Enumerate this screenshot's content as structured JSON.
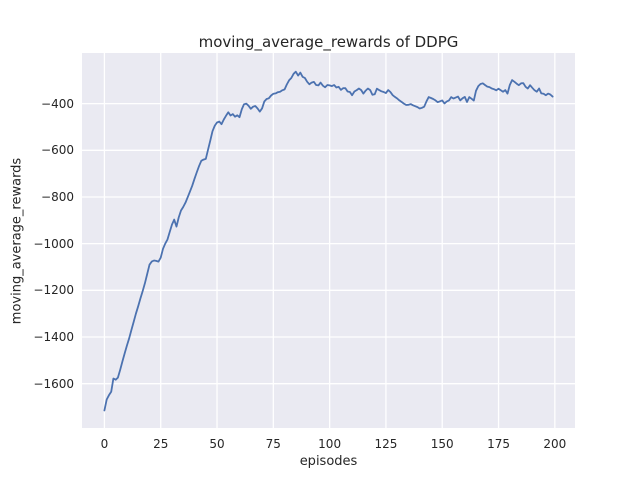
{
  "figure": {
    "background": "#ffffff"
  },
  "chart_data": {
    "type": "line",
    "title": "moving_average_rewards of DDPG",
    "xlabel": "episodes",
    "ylabel": "moving_average_rewards",
    "legend_position": "none",
    "grid": true,
    "style": "seaborn-darkgrid",
    "plot_bg": "#eaeaf2",
    "grid_color": "#ffffff",
    "text_color": "#262626",
    "xlim": [
      -9.95,
      208.95
    ],
    "ylim": [
      -1790,
      -183
    ],
    "x_ticks": [
      0,
      25,
      50,
      75,
      100,
      125,
      150,
      175,
      200
    ],
    "x_tick_labels": [
      "0",
      "25",
      "50",
      "75",
      "100",
      "125",
      "150",
      "175",
      "200"
    ],
    "y_ticks": [
      -400,
      -600,
      -800,
      -1000,
      -1200,
      -1400,
      -1600
    ],
    "y_tick_labels": [
      "−400",
      "−600",
      "−800",
      "−1000",
      "−1200",
      "−1400",
      "−1600"
    ],
    "series": [
      {
        "name": "moving_average_rewards",
        "color": "#4c72b0",
        "line_width": 1.8,
        "x": [
          0,
          1,
          2,
          3,
          4,
          5,
          6,
          7,
          8,
          9,
          10,
          11,
          12,
          13,
          14,
          15,
          16,
          17,
          18,
          19,
          20,
          21,
          22,
          23,
          24,
          25,
          26,
          27,
          28,
          29,
          30,
          31,
          32,
          33,
          34,
          35,
          36,
          37,
          38,
          39,
          40,
          41,
          42,
          43,
          44,
          45,
          46,
          47,
          48,
          49,
          50,
          51,
          52,
          53,
          54,
          55,
          56,
          57,
          58,
          59,
          60,
          61,
          62,
          63,
          64,
          65,
          66,
          67,
          68,
          69,
          70,
          71,
          72,
          73,
          74,
          75,
          76,
          77,
          78,
          79,
          80,
          81,
          82,
          83,
          84,
          85,
          86,
          87,
          88,
          89,
          90,
          91,
          92,
          93,
          94,
          95,
          96,
          97,
          98,
          99,
          100,
          101,
          102,
          103,
          104,
          105,
          106,
          107,
          108,
          109,
          110,
          111,
          112,
          113,
          114,
          115,
          116,
          117,
          118,
          119,
          120,
          121,
          122,
          123,
          124,
          125,
          126,
          127,
          128,
          129,
          130,
          131,
          132,
          133,
          134,
          135,
          136,
          137,
          138,
          139,
          140,
          141,
          142,
          143,
          144,
          145,
          146,
          147,
          148,
          149,
          150,
          151,
          152,
          153,
          154,
          155,
          156,
          157,
          158,
          159,
          160,
          161,
          162,
          163,
          164,
          165,
          166,
          167,
          168,
          169,
          170,
          171,
          172,
          173,
          174,
          175,
          176,
          177,
          178,
          179,
          180,
          181,
          182,
          183,
          184,
          185,
          186,
          187,
          188,
          189,
          190,
          191,
          192,
          193,
          194,
          195,
          196,
          197,
          198,
          199
        ],
        "y": [
          -1715,
          -1668,
          -1650,
          -1635,
          -1578,
          -1583,
          -1574,
          -1540,
          -1505,
          -1470,
          -1437,
          -1405,
          -1370,
          -1335,
          -1300,
          -1268,
          -1235,
          -1203,
          -1170,
          -1130,
          -1090,
          -1077,
          -1072,
          -1074,
          -1077,
          -1060,
          -1022,
          -1000,
          -982,
          -950,
          -918,
          -897,
          -927,
          -888,
          -858,
          -843,
          -824,
          -801,
          -776,
          -752,
          -722,
          -695,
          -668,
          -645,
          -640,
          -637,
          -598,
          -558,
          -518,
          -494,
          -481,
          -477,
          -488,
          -468,
          -452,
          -437,
          -451,
          -445,
          -456,
          -450,
          -458,
          -424,
          -403,
          -400,
          -409,
          -422,
          -413,
          -410,
          -421,
          -434,
          -420,
          -391,
          -380,
          -377,
          -365,
          -358,
          -356,
          -351,
          -349,
          -343,
          -339,
          -318,
          -300,
          -290,
          -272,
          -263,
          -280,
          -267,
          -285,
          -290,
          -306,
          -317,
          -310,
          -307,
          -320,
          -322,
          -310,
          -323,
          -330,
          -320,
          -322,
          -325,
          -320,
          -331,
          -328,
          -341,
          -334,
          -334,
          -348,
          -350,
          -364,
          -348,
          -342,
          -335,
          -342,
          -357,
          -344,
          -335,
          -342,
          -362,
          -360,
          -336,
          -342,
          -347,
          -350,
          -355,
          -342,
          -350,
          -364,
          -371,
          -378,
          -386,
          -393,
          -400,
          -406,
          -405,
          -402,
          -407,
          -411,
          -415,
          -421,
          -418,
          -413,
          -390,
          -372,
          -376,
          -380,
          -386,
          -394,
          -390,
          -386,
          -399,
          -391,
          -386,
          -372,
          -378,
          -374,
          -370,
          -386,
          -377,
          -371,
          -393,
          -372,
          -379,
          -387,
          -345,
          -325,
          -316,
          -313,
          -320,
          -327,
          -329,
          -335,
          -338,
          -343,
          -336,
          -343,
          -349,
          -342,
          -357,
          -320,
          -299,
          -306,
          -314,
          -321,
          -313,
          -312,
          -328,
          -335,
          -321,
          -332,
          -343,
          -349,
          -335,
          -356,
          -358,
          -364,
          -357,
          -361,
          -370
        ]
      }
    ]
  }
}
